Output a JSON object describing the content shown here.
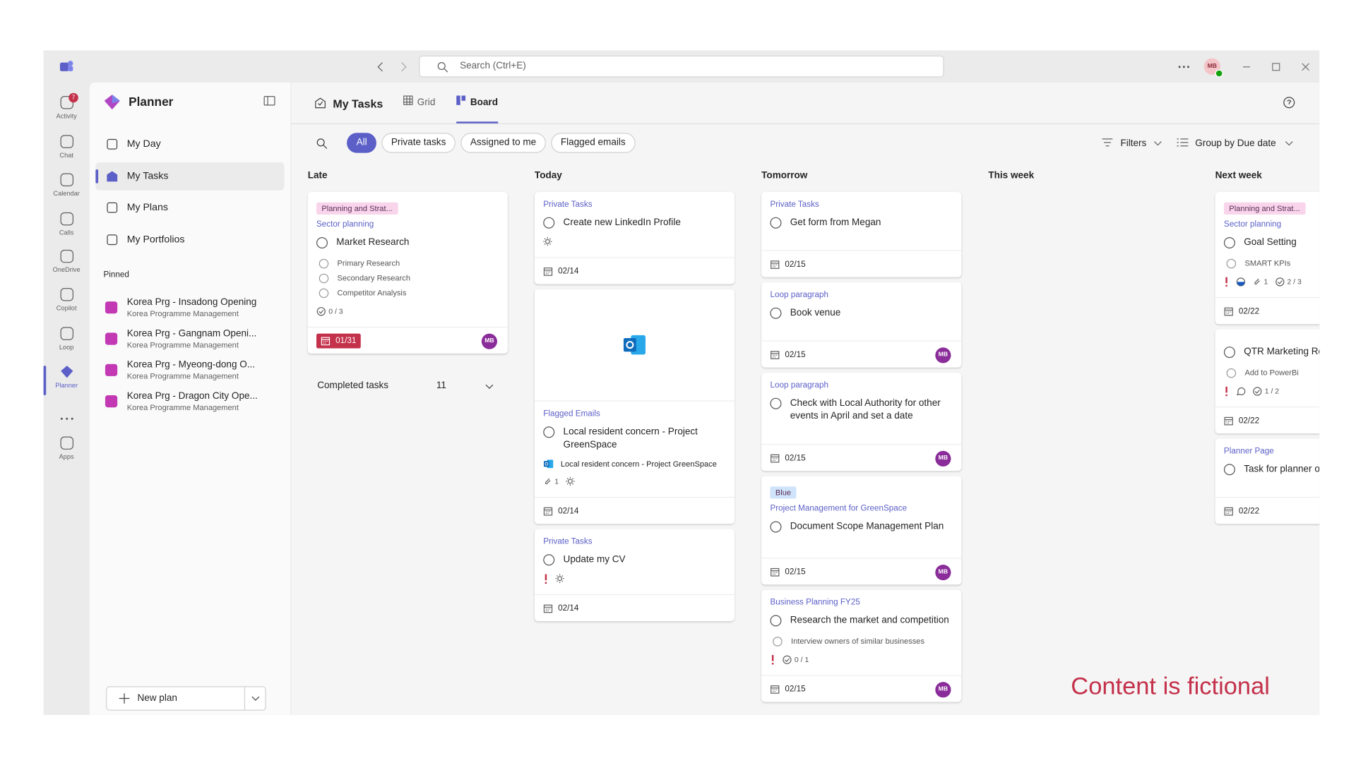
{
  "titlebar": {
    "search": "Search (Ctrl+E)",
    "user_initials": "MB"
  },
  "rail": {
    "activity_badge": "7",
    "items": [
      "Activity",
      "Chat",
      "Calendar",
      "Calls",
      "OneDrive",
      "Copilot",
      "Loop",
      "Planner",
      "Apps"
    ],
    "active": 7
  },
  "sidebar": {
    "title": "Planner",
    "nav": [
      "My Day",
      "My Tasks",
      "My Plans",
      "My Portfolios"
    ],
    "active": 1,
    "pinned_label": "Pinned",
    "pinned": [
      {
        "name": "Korea Prg - Insadong Opening",
        "subtitle": "Korea Programme Management"
      },
      {
        "name": "Korea Prg - Gangnam Openi...",
        "subtitle": "Korea Programme Management"
      },
      {
        "name": "Korea Prg - Myeong-dong O...",
        "subtitle": "Korea Programme Management"
      },
      {
        "name": "Korea Prg - Dragon City Ope...",
        "subtitle": "Korea Programme Management"
      }
    ],
    "new_plan": "New plan"
  },
  "header": {
    "title": "My Tasks",
    "tabs": [
      "Grid",
      "Board"
    ],
    "active_tab": 1,
    "filters": [
      "All",
      "Private tasks",
      "Assigned to me",
      "Flagged emails"
    ],
    "active_filter": 0,
    "filters_button": "Filters",
    "group_by": "Group by Due date"
  },
  "columns": [
    {
      "title": "Late",
      "cards": [
        {
          "label": {
            "text": "Planning and Strat...",
            "color": "#f9d5ec"
          },
          "plan": "Sector planning",
          "title": "Market Research",
          "checklist": [
            "Primary Research",
            "Secondary Research",
            "Competitor Analysis"
          ],
          "meta": [
            {
              "icon": "check",
              "text": "0 / 3"
            }
          ],
          "date": "01/31",
          "late": true,
          "avatar": "MB"
        }
      ],
      "completed": {
        "label": "Completed tasks",
        "count": 11
      }
    },
    {
      "title": "Today",
      "cards": [
        {
          "plan": "Private Tasks",
          "title": "Create new LinkedIn Profile",
          "meta": [
            {
              "icon": "sun"
            }
          ],
          "date": "02/14"
        },
        {
          "plan": "Flagged Emails",
          "title": "Local resident concern - Project GreenSpace",
          "attachment": "Local resident concern - Project GreenSpace",
          "meta": [
            {
              "icon": "attach",
              "text": "1"
            },
            {
              "icon": "sun"
            }
          ],
          "date": "02/14"
        },
        {
          "plan": "Private Tasks",
          "title": "Update my CV",
          "meta": [
            {
              "icon": "priority"
            },
            {
              "icon": "sun"
            }
          ],
          "date": "02/14"
        }
      ]
    },
    {
      "title": "Tomorrow",
      "cards": [
        {
          "plan": "Private Tasks",
          "title": "Get form from Megan",
          "date": "02/15"
        },
        {
          "plan": "Loop paragraph",
          "title": "Book venue",
          "date": "02/15",
          "avatar": "MB"
        },
        {
          "plan": "Loop paragraph",
          "title": "Check with Local Authority for other events in April and set a date",
          "date": "02/15",
          "avatar": "MB"
        },
        {
          "label": {
            "text": "Blue",
            "color": "#cfe4fa"
          },
          "plan": "Project Management for GreenSpace",
          "title": "Document Scope Management Plan",
          "date": "02/15",
          "avatar": "MB"
        },
        {
          "plan": "Business Planning FY25",
          "title": "Research the market and competition",
          "checklist": [
            "Interview owners of similar businesses"
          ],
          "meta": [
            {
              "icon": "priority"
            },
            {
              "icon": "check",
              "text": "0 / 1"
            }
          ],
          "date": "02/15",
          "avatar": "MB"
        }
      ]
    },
    {
      "title": "This week",
      "cards": []
    },
    {
      "title": "Next week",
      "cards": [
        {
          "label": {
            "text": "Planning and Strat...",
            "color": "#f9d5ec"
          },
          "plan": "Sector planning",
          "title": "Goal Setting",
          "checklist": [
            "SMART KPIs"
          ],
          "meta": [
            {
              "icon": "priority"
            },
            {
              "icon": "progress"
            },
            {
              "icon": "attach",
              "text": "1"
            },
            {
              "icon": "check",
              "text": "2 / 3"
            }
          ],
          "date": "02/22"
        },
        {
          "title": "QTR Marketing Re",
          "checklist": [
            "Add to PowerBi"
          ],
          "meta": [
            {
              "icon": "priority"
            },
            {
              "icon": "comment"
            },
            {
              "icon": "check",
              "text": "1 / 2"
            }
          ],
          "date": "02/22"
        },
        {
          "plan": "Planner Page",
          "title": "Task for planner o",
          "date": "02/22"
        }
      ]
    }
  ],
  "watermark": "Content is fictional"
}
